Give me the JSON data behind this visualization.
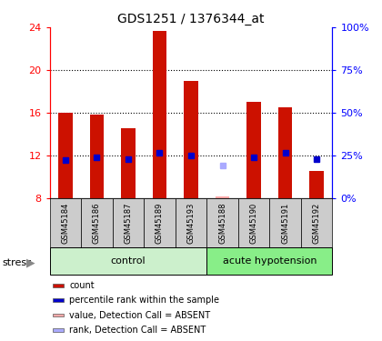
{
  "title": "GDS1251 / 1376344_at",
  "samples": [
    "GSM45184",
    "GSM45186",
    "GSM45187",
    "GSM45189",
    "GSM45193",
    "GSM45188",
    "GSM45190",
    "GSM45191",
    "GSM45192"
  ],
  "bar_values": [
    16.0,
    15.8,
    14.5,
    23.7,
    19.0,
    null,
    17.0,
    16.5,
    10.5
  ],
  "bar_absent": [
    null,
    null,
    null,
    null,
    null,
    8.1,
    null,
    null,
    null
  ],
  "rank_values": [
    11.5,
    11.8,
    11.6,
    12.2,
    12.0,
    null,
    11.8,
    12.2,
    11.6
  ],
  "rank_absent": [
    null,
    null,
    null,
    null,
    null,
    11.0,
    null,
    null,
    null
  ],
  "control_count": 5,
  "acute_count": 4,
  "ylim_left": [
    8,
    24
  ],
  "ylim_right": [
    0,
    100
  ],
  "yticks_left": [
    8,
    12,
    16,
    20,
    24
  ],
  "yticks_right": [
    0,
    25,
    50,
    75,
    100
  ],
  "ytick_labels_right": [
    "0%",
    "25%",
    "50%",
    "75%",
    "100%"
  ],
  "bar_color": "#cc1100",
  "rank_color": "#0000cc",
  "bar_absent_color": "#ffaaaa",
  "rank_absent_color": "#aaaaff",
  "control_bg": "#ccf0cc",
  "acute_bg": "#88ee88",
  "sample_bg": "#cccccc",
  "stress_label": "stress",
  "control_label": "control",
  "acute_label": "acute hypotension",
  "legend_items": [
    {
      "label": "count",
      "color": "#cc1100"
    },
    {
      "label": "percentile rank within the sample",
      "color": "#0000cc"
    },
    {
      "label": "value, Detection Call = ABSENT",
      "color": "#ffaaaa"
    },
    {
      "label": "rank, Detection Call = ABSENT",
      "color": "#aaaaff"
    }
  ],
  "gridline_y": [
    12,
    16,
    20
  ],
  "bar_width": 0.45
}
